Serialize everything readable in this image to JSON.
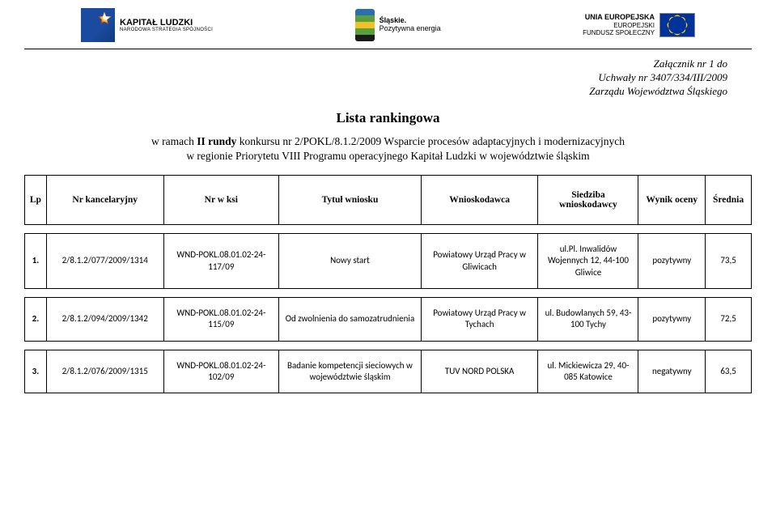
{
  "logos": {
    "left_title": "KAPITAŁ LUDZKI",
    "left_sub": "NARODOWA STRATEGIA SPÓJNOŚCI",
    "center_title": "Śląskie.",
    "center_sub": "Pozytywna energia",
    "right_top": "UNIA EUROPEJSKA",
    "right_mid": "EUROPEJSKI",
    "right_bot": "FUNDUSZ SPOŁECZNY"
  },
  "annex": {
    "line1": "Załącznik nr 1 do",
    "line2": "Uchwały nr 3407/334/III/2009",
    "line3": "Zarządu Województwa Śląskiego"
  },
  "title": "Lista rankingowa",
  "subtitle": {
    "line1_prefix": "w ramach ",
    "line1_bold": "II rundy ",
    "line1_rest": "konkursu nr 2/POKL/8.1.2/2009 Wsparcie procesów adaptacyjnych i modernizacyjnych",
    "line2": "w regionie Priorytetu VIII Programu operacyjnego Kapitał Ludzki w województwie śląskim"
  },
  "columns": {
    "lp": "Lp",
    "chancery": "Nr kancelaryjny",
    "ksi": "Nr w ksi",
    "title": "Tytuł wniosku",
    "applicant": "Wnioskodawca",
    "address": "Siedziba wnioskodawcy",
    "result": "Wynik oceny",
    "avg": "Średnia"
  },
  "rows": [
    {
      "lp": "1.",
      "chancery": "2/8.1.2/077/2009/1314",
      "ksi": "WND-POKL.08.01.02-24-117/09",
      "title": "Nowy start",
      "applicant": "Powiatowy Urząd Pracy w Gliwicach",
      "address": "ul.Pl. Inwalidów Wojennych 12, 44-100 Gliwice",
      "result": "pozytywny",
      "avg": "73,5"
    },
    {
      "lp": "2.",
      "chancery": "2/8.1.2/094/2009/1342",
      "ksi": "WND-POKL.08.01.02-24-115/09",
      "title": "Od zwolnienia do samozatrudnienia",
      "applicant": "Powiatowy Urząd Pracy w Tychach",
      "address": "ul. Budowlanych 59, 43-100 Tychy",
      "result": "pozytywny",
      "avg": "72,5"
    },
    {
      "lp": "3.",
      "chancery": "2/8.1.2/076/2009/1315",
      "ksi": "WND-POKL.08.01.02-24-102/09",
      "title": "Badanie kompetencji sieciowych w województwie śląskim",
      "applicant": "TUV NORD POLSKA",
      "address": "ul. Mickiewicza 29, 40-085 Katowice",
      "result": "negatywny",
      "avg": "63,5"
    }
  ],
  "colors": {
    "border": "#000000",
    "background": "#ffffff"
  }
}
